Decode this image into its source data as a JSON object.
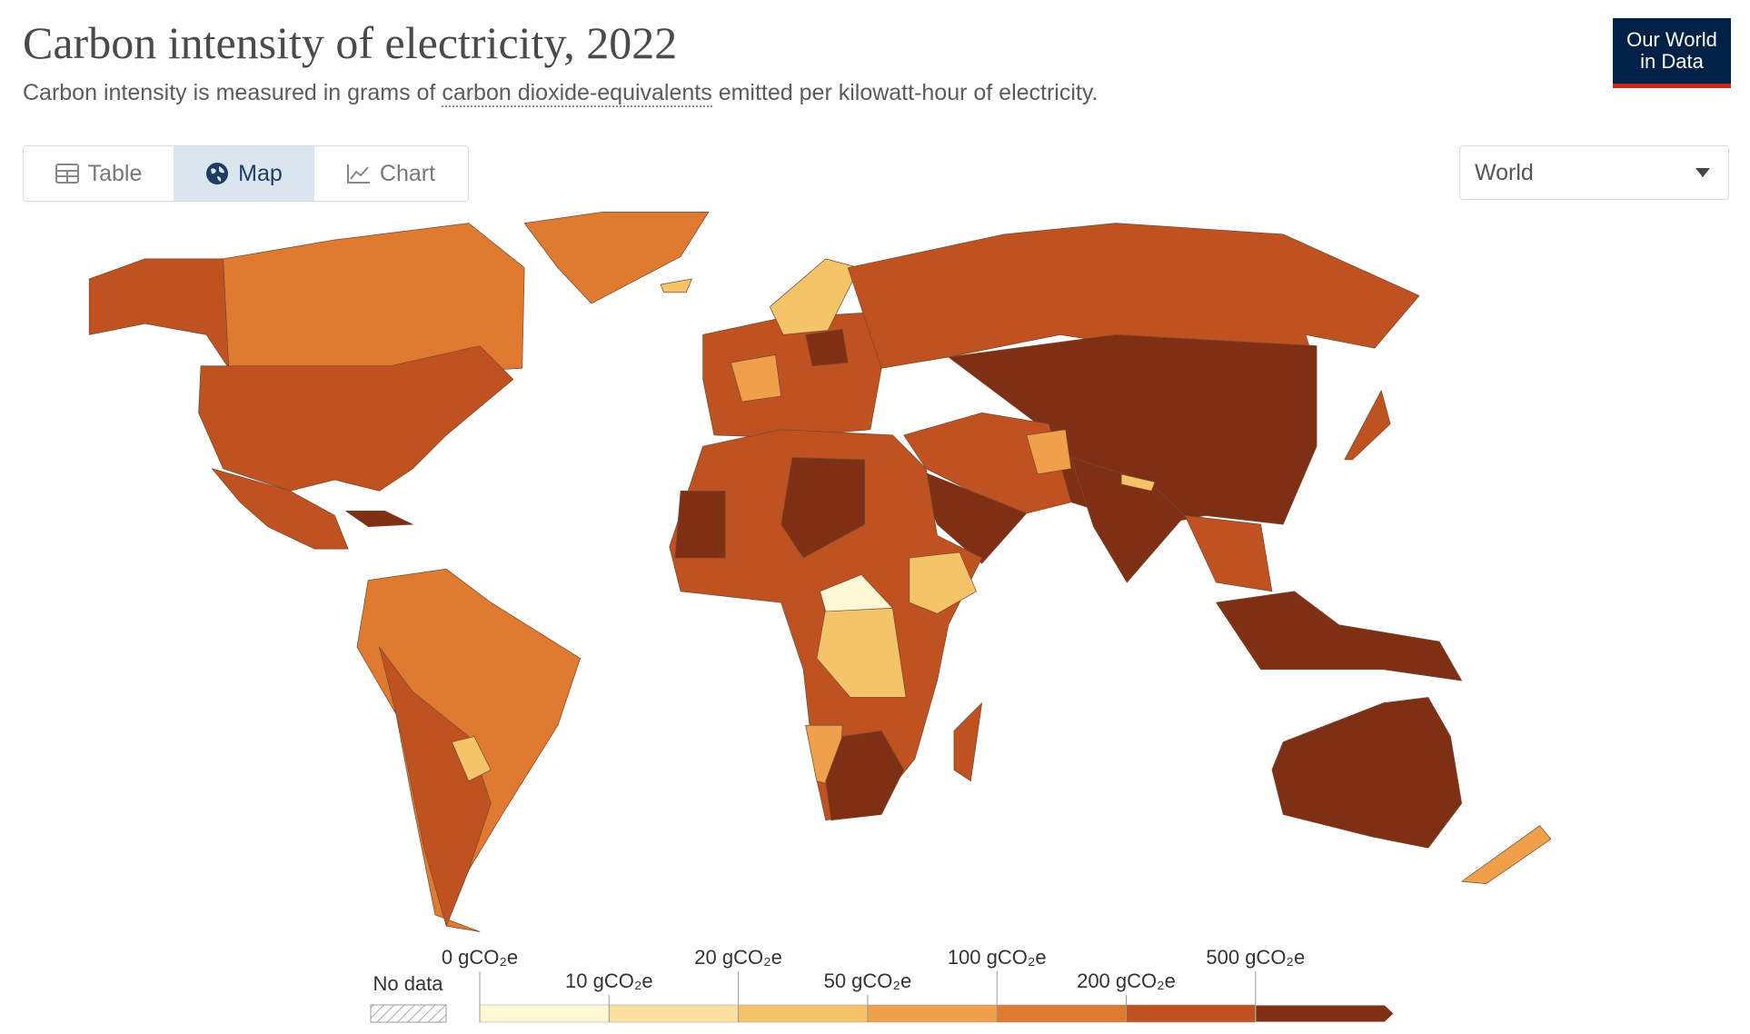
{
  "header": {
    "title": "Carbon intensity of electricity, 2022",
    "subtitle_before": "Carbon intensity is measured in grams of",
    "subtitle_link": "carbon dioxide-equivalents",
    "subtitle_after": "emitted per kilowatt-hour of electricity.",
    "logo": [
      "Our World",
      "in Data"
    ]
  },
  "tabs": [
    "Table",
    "Map",
    "Chart"
  ],
  "active_tab": 1,
  "region_selector": "World",
  "legend": {
    "no_data": "No data",
    "ticks": [
      "0 gCO₂e",
      "10 gCO₂e",
      "20 gCO₂e",
      "50 gCO₂e",
      "100 gCO₂e",
      "200 gCO₂e",
      "500 gCO₂e"
    ],
    "colors": [
      "#fff8d4",
      "#fbe0a0",
      "#f6c468",
      "#f0a04a",
      "#e07a30",
      "#bf5220",
      "#7f2f14"
    ]
  }
}
